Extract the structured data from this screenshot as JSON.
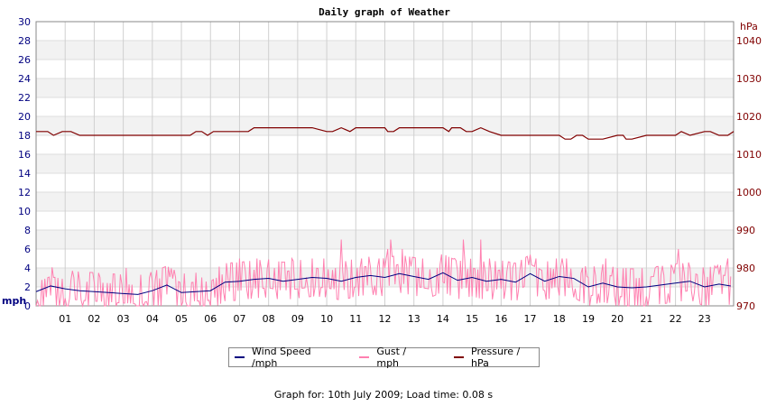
{
  "chart_data": {
    "type": "line",
    "title": "Daily graph of Weather",
    "y_left": {
      "label": "mph",
      "range": [
        0,
        30
      ],
      "ticks": [
        0,
        2,
        4,
        6,
        8,
        10,
        12,
        14,
        16,
        18,
        20,
        22,
        24,
        26,
        28,
        30
      ]
    },
    "y_right": {
      "label": "hPa",
      "range": [
        970,
        1045
      ],
      "ticks": [
        970,
        980,
        990,
        1000,
        1010,
        1020,
        1030,
        1040
      ]
    },
    "x": {
      "range": [
        0,
        24
      ],
      "tick_labels": [
        "01",
        "02",
        "03",
        "04",
        "05",
        "06",
        "07",
        "08",
        "09",
        "10",
        "11",
        "12",
        "13",
        "14",
        "15",
        "16",
        "17",
        "18",
        "19",
        "20",
        "21",
        "22",
        "23"
      ]
    },
    "grid": true,
    "legend_position": "bottom-center",
    "series": [
      {
        "name": "Wind Speed /mph",
        "axis": "left",
        "color": "#000080",
        "hours": [
          0,
          0.5,
          1,
          1.5,
          2,
          2.5,
          3,
          3.5,
          4,
          4.5,
          5,
          5.5,
          6,
          6.5,
          7,
          7.5,
          8,
          8.5,
          9,
          9.5,
          10,
          10.5,
          11,
          11.5,
          12,
          12.5,
          13,
          13.5,
          14,
          14.5,
          15,
          15.5,
          16,
          16.5,
          17,
          17.5,
          18,
          18.5,
          19,
          19.5,
          20,
          20.5,
          21,
          21.5,
          22,
          22.5,
          23,
          23.5,
          23.9
        ],
        "values": [
          1.5,
          2.1,
          1.8,
          1.6,
          1.5,
          1.4,
          1.3,
          1.2,
          1.6,
          2.2,
          1.4,
          1.5,
          1.6,
          2.5,
          2.6,
          2.8,
          2.9,
          2.6,
          2.8,
          3.0,
          2.9,
          2.6,
          3.0,
          3.2,
          3.0,
          3.4,
          3.1,
          2.8,
          3.5,
          2.7,
          3.0,
          2.6,
          2.8,
          2.5,
          3.4,
          2.6,
          3.1,
          2.9,
          2.0,
          2.4,
          2.0,
          1.9,
          2.0,
          2.2,
          2.4,
          2.6,
          2.0,
          2.3,
          2.1
        ]
      },
      {
        "name": "Gust / mph",
        "axis": "left",
        "color": "#ff80b0",
        "peaks": [
          [
            0.6,
            3
          ],
          [
            1.3,
            3
          ],
          [
            2.2,
            3
          ],
          [
            3.1,
            4
          ],
          [
            3.9,
            3
          ],
          [
            4.8,
            3
          ],
          [
            5.7,
            3
          ],
          [
            6.6,
            3
          ],
          [
            7.0,
            5
          ],
          [
            7.6,
            5
          ],
          [
            8.2,
            4
          ],
          [
            8.8,
            5
          ],
          [
            9.3,
            3
          ],
          [
            9.9,
            5
          ],
          [
            10.3,
            4
          ],
          [
            10.5,
            7
          ],
          [
            11.2,
            5
          ],
          [
            11.8,
            5
          ],
          [
            12.1,
            6
          ],
          [
            12.2,
            7
          ],
          [
            12.6,
            6
          ],
          [
            13.3,
            5
          ],
          [
            13.8,
            4
          ],
          [
            14.4,
            5
          ],
          [
            14.7,
            7
          ],
          [
            15.3,
            7
          ],
          [
            15.6,
            5
          ],
          [
            16.4,
            4
          ],
          [
            17.2,
            5
          ],
          [
            17.7,
            4
          ],
          [
            18.1,
            5
          ],
          [
            18.8,
            4
          ],
          [
            19.6,
            5
          ],
          [
            20.3,
            4
          ],
          [
            21.3,
            4
          ],
          [
            21.9,
            4
          ],
          [
            22.1,
            6
          ],
          [
            22.5,
            4
          ],
          [
            23.4,
            4
          ],
          [
            23.8,
            5
          ]
        ]
      },
      {
        "name": "Pressure / hPa",
        "axis": "right",
        "color": "#800000",
        "hours": [
          0,
          0.4,
          0.6,
          0.9,
          1.2,
          1.5,
          2,
          3,
          4,
          5,
          5.3,
          5.5,
          5.7,
          5.9,
          6.1,
          6.5,
          7,
          7.3,
          7.5,
          8,
          8.5,
          9,
          9.5,
          10,
          10.2,
          10.5,
          10.8,
          11,
          11.5,
          12,
          12.1,
          12.3,
          12.5,
          13,
          13.5,
          14,
          14.2,
          14.3,
          14.6,
          14.8,
          15,
          15.3,
          15.6,
          16,
          16.2,
          16.5,
          17,
          17.5,
          18,
          18.2,
          18.4,
          18.6,
          18.8,
          19,
          19.5,
          20,
          20.2,
          20.3,
          20.5,
          21,
          21.5,
          21.8,
          22,
          22.2,
          22.5,
          23,
          23.2,
          23.5,
          23.8,
          24
        ],
        "values": [
          1016,
          1016,
          1015,
          1016,
          1016,
          1015,
          1015,
          1015,
          1015,
          1015,
          1015,
          1016,
          1016,
          1015,
          1016,
          1016,
          1016,
          1016,
          1017,
          1017,
          1017,
          1017,
          1017,
          1016,
          1016,
          1017,
          1016,
          1017,
          1017,
          1017,
          1016,
          1016,
          1017,
          1017,
          1017,
          1017,
          1016,
          1017,
          1017,
          1016,
          1016,
          1017,
          1016,
          1015,
          1015,
          1015,
          1015,
          1015,
          1015,
          1014,
          1014,
          1015,
          1015,
          1014,
          1014,
          1015,
          1015,
          1014,
          1014,
          1015,
          1015,
          1015,
          1015,
          1016,
          1015,
          1016,
          1016,
          1015,
          1015,
          1016
        ]
      }
    ]
  },
  "legend": {
    "wind": "Wind Speed /mph",
    "gust": "Gust / mph",
    "pressure": "Pressure / hPa"
  },
  "footer": "Graph for: 10th July 2009; Load time: 0.08 s"
}
